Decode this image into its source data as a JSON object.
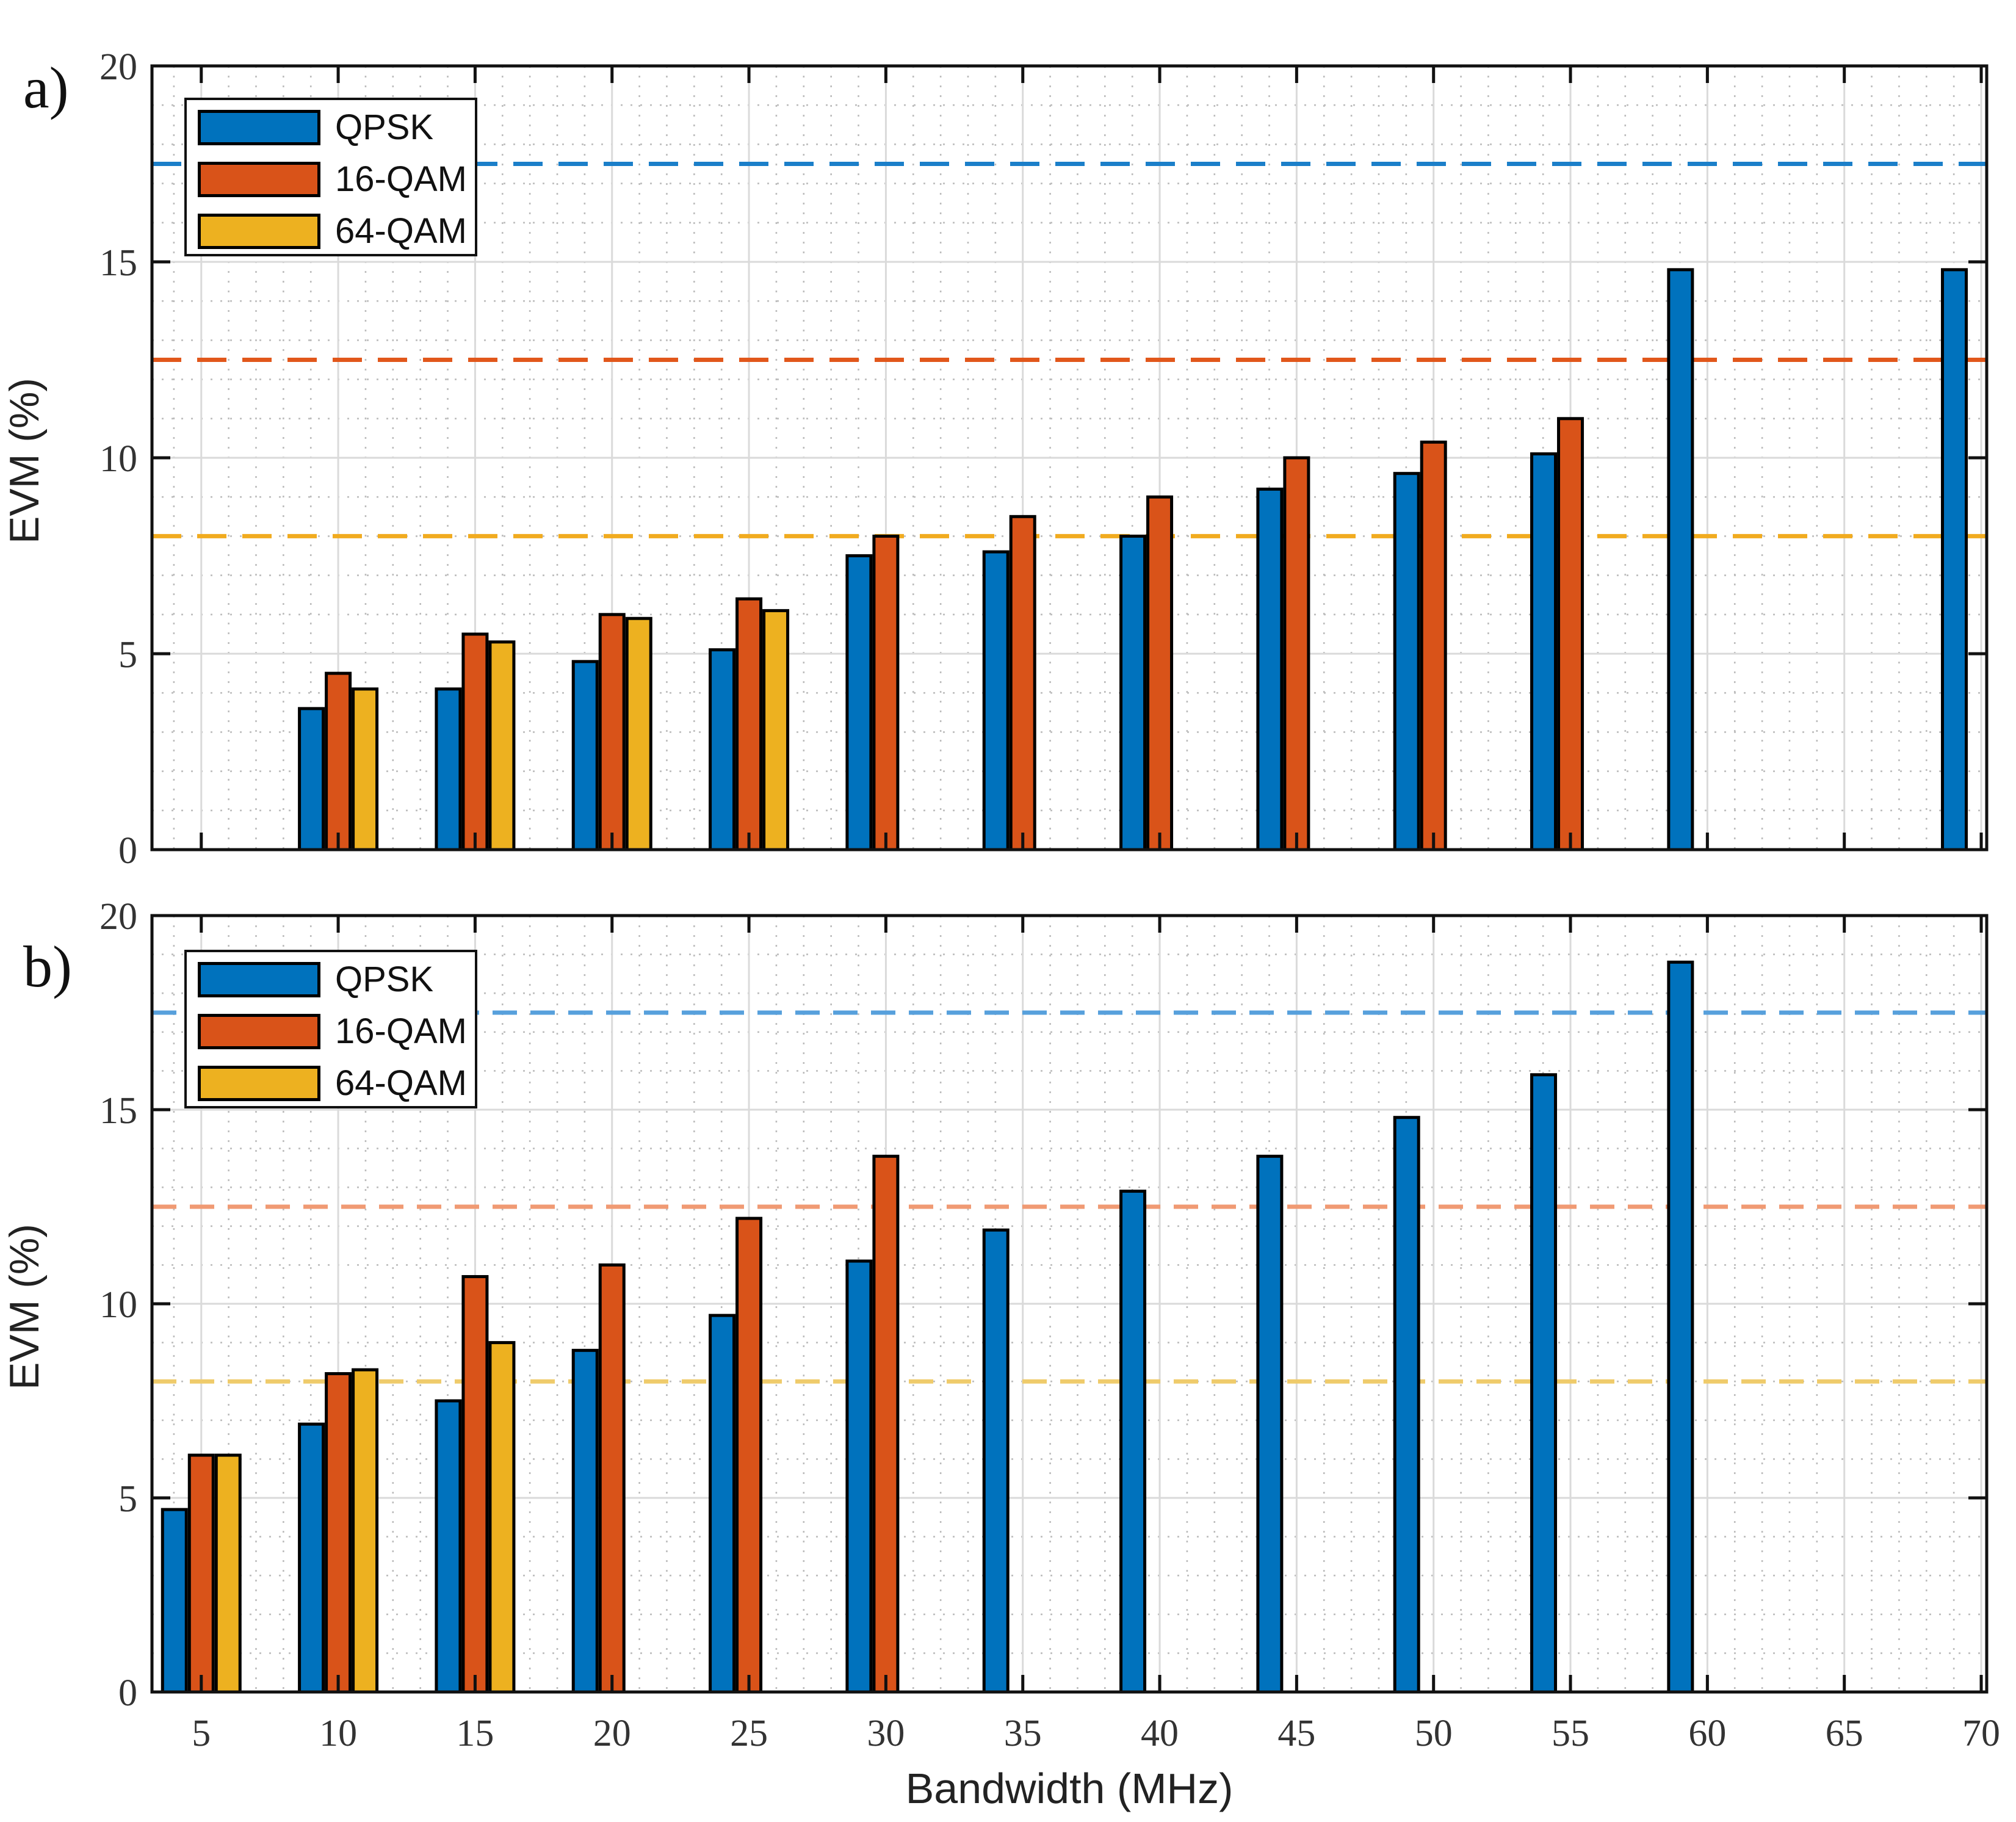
{
  "figure": {
    "background": "#ffffff",
    "panel_a_label": "a)",
    "panel_b_label": "b)",
    "xlabel": "Bandwidth (MHz)",
    "ylabel": "EVM (%)"
  },
  "legend": {
    "items": [
      {
        "label": "QPSK",
        "color": "#0072BD"
      },
      {
        "label": "16-QAM",
        "color": "#D95319"
      },
      {
        "label": "64-QAM",
        "color": "#EDB120"
      }
    ]
  },
  "chart_data": [
    {
      "type": "bar",
      "panel": "a",
      "title": "",
      "xlabel": "",
      "ylabel": "EVM (%)",
      "xlim": [
        3.2,
        70.2
      ],
      "ylim": [
        0,
        20
      ],
      "xticks": [
        5,
        10,
        15,
        20,
        25,
        30,
        35,
        40,
        45,
        50,
        55,
        60,
        65,
        70
      ],
      "yticks": [
        0,
        5,
        10,
        15,
        20
      ],
      "grid": {
        "major": true,
        "minor": true
      },
      "legend_position": "upper-left",
      "categories": [
        5,
        10,
        15,
        20,
        25,
        30,
        35,
        40,
        45,
        50,
        55,
        60,
        65,
        70
      ],
      "series": [
        {
          "name": "QPSK",
          "color": "#0072BD",
          "values": [
            null,
            3.6,
            4.1,
            4.8,
            5.1,
            7.5,
            7.6,
            8.0,
            9.2,
            9.6,
            10.1,
            14.8,
            null,
            14.8
          ]
        },
        {
          "name": "16-QAM",
          "color": "#D95319",
          "values": [
            null,
            4.5,
            5.5,
            6.0,
            6.4,
            8.0,
            8.5,
            9.0,
            10.0,
            10.4,
            11.0,
            null,
            null,
            null
          ]
        },
        {
          "name": "64-QAM",
          "color": "#EDB120",
          "values": [
            null,
            4.1,
            5.3,
            5.9,
            6.1,
            null,
            null,
            null,
            null,
            null,
            null,
            null,
            null,
            null
          ]
        }
      ],
      "thresholds": [
        {
          "name": "qpsk-evm-limit",
          "y": 17.5,
          "color": "#1B7FC9"
        },
        {
          "name": "16qam-evm-limit",
          "y": 12.5,
          "color": "#E1571B"
        },
        {
          "name": "64qam-evm-limit",
          "y": 8.0,
          "color": "#F1AB1F"
        }
      ]
    },
    {
      "type": "bar",
      "panel": "b",
      "title": "",
      "xlabel": "Bandwidth (MHz)",
      "ylabel": "EVM (%)",
      "xlim": [
        3.2,
        70.2
      ],
      "ylim": [
        0,
        20
      ],
      "xticks": [
        5,
        10,
        15,
        20,
        25,
        30,
        35,
        40,
        45,
        50,
        55,
        60,
        65,
        70
      ],
      "yticks": [
        0,
        5,
        10,
        15,
        20
      ],
      "grid": {
        "major": true,
        "minor": true
      },
      "legend_position": "upper-left",
      "categories": [
        5,
        10,
        15,
        20,
        25,
        30,
        35,
        40,
        45,
        50,
        55,
        60,
        65,
        70
      ],
      "series": [
        {
          "name": "QPSK",
          "color": "#0072BD",
          "values": [
            4.7,
            6.9,
            7.5,
            8.8,
            9.7,
            11.1,
            11.9,
            12.9,
            13.8,
            14.8,
            15.9,
            18.8,
            null,
            null
          ]
        },
        {
          "name": "16-QAM",
          "color": "#D95319",
          "values": [
            6.1,
            8.2,
            10.7,
            11.0,
            12.2,
            13.8,
            null,
            null,
            null,
            null,
            null,
            null,
            null,
            null
          ]
        },
        {
          "name": "64-QAM",
          "color": "#EDB120",
          "values": [
            6.1,
            8.3,
            9.0,
            null,
            null,
            null,
            null,
            null,
            null,
            null,
            null,
            null,
            null,
            null
          ]
        }
      ],
      "thresholds": [
        {
          "name": "qpsk-evm-limit",
          "y": 17.5,
          "color": "#57A0DC"
        },
        {
          "name": "16qam-evm-limit",
          "y": 12.5,
          "color": "#F09A73"
        },
        {
          "name": "64qam-evm-limit",
          "y": 8.0,
          "color": "#EFCB6B"
        }
      ]
    }
  ]
}
